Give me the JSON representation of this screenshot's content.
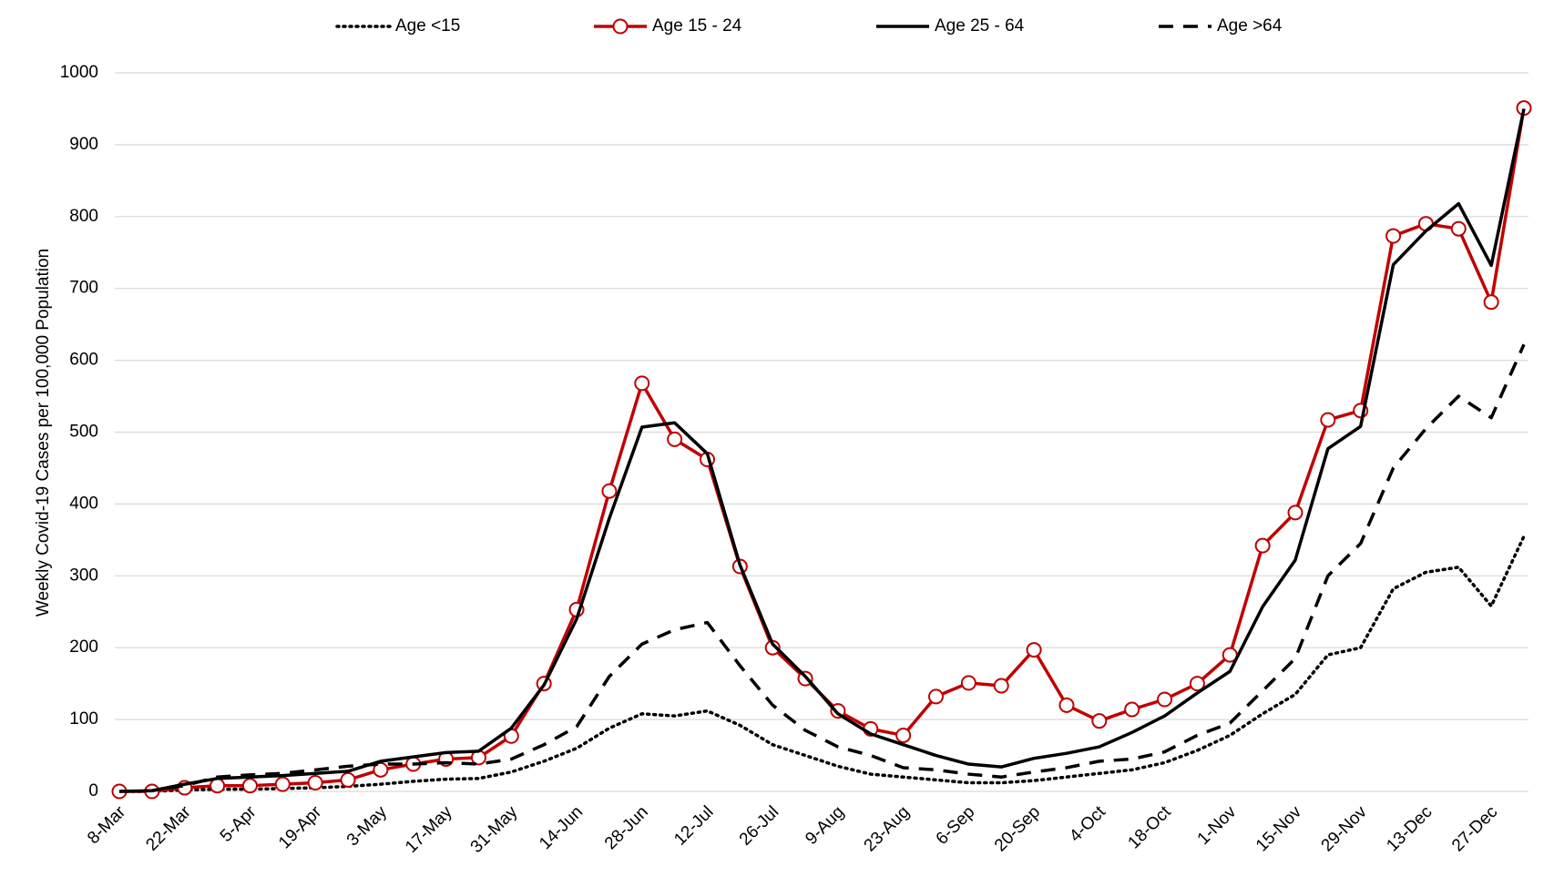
{
  "chart_data": {
    "type": "line",
    "y_label": "Weekly Covid-19 Cases per 100,000 Population",
    "categories": [
      "8-Mar",
      null,
      "22-Mar",
      null,
      "5-Apr",
      null,
      "19-Apr",
      null,
      "3-May",
      null,
      "17-May",
      null,
      "31-May",
      null,
      "14-Jun",
      null,
      "28-Jun",
      null,
      "12-Jul",
      null,
      "26-Jul",
      null,
      "9-Aug",
      null,
      "23-Aug",
      null,
      "6-Sep",
      null,
      "20-Sep",
      null,
      "4-Oct",
      null,
      "18-Oct",
      null,
      "1-Nov",
      null,
      "15-Nov",
      null,
      "29-Nov",
      null,
      "13-Dec",
      null,
      "27-Dec",
      null
    ],
    "series": [
      {
        "name": "Age <15",
        "color": "#000000",
        "style": "dotted",
        "values": [
          0,
          0,
          2,
          3,
          3,
          4,
          5,
          7,
          10,
          14,
          17,
          18,
          27,
          42,
          60,
          88,
          108,
          105,
          112,
          92,
          65,
          50,
          35,
          24,
          20,
          16,
          12,
          12,
          15,
          20,
          25,
          30,
          40,
          57,
          78,
          108,
          135,
          190,
          200,
          282,
          305,
          312,
          258,
          355
        ]
      },
      {
        "name": "Age 15 - 24",
        "color": "#c00000",
        "style": "markers",
        "values": [
          0,
          0,
          5,
          8,
          8,
          10,
          12,
          16,
          30,
          38,
          45,
          47,
          77,
          150,
          253,
          418,
          568,
          490,
          462,
          313,
          200,
          157,
          112,
          87,
          78,
          132,
          151,
          147,
          197,
          120,
          98,
          114,
          128,
          150,
          190,
          342,
          388,
          517,
          530,
          773,
          790,
          783,
          681,
          951
        ]
      },
      {
        "name": "Age 25 - 64",
        "color": "#000000",
        "style": "solid",
        "values": [
          0,
          1,
          10,
          18,
          20,
          22,
          25,
          28,
          42,
          48,
          54,
          56,
          88,
          148,
          240,
          380,
          507,
          513,
          470,
          315,
          205,
          160,
          108,
          80,
          65,
          50,
          38,
          34,
          46,
          53,
          62,
          82,
          105,
          137,
          167,
          257,
          322,
          477,
          508,
          733,
          780,
          818,
          732,
          950
        ]
      },
      {
        "name": "Age >64",
        "color": "#000000",
        "style": "dashed",
        "values": [
          0,
          1,
          8,
          20,
          23,
          25,
          30,
          35,
          38,
          38,
          40,
          38,
          45,
          65,
          90,
          160,
          205,
          225,
          235,
          175,
          120,
          85,
          62,
          50,
          33,
          30,
          24,
          20,
          27,
          33,
          42,
          45,
          55,
          78,
          95,
          140,
          185,
          300,
          345,
          450,
          505,
          550,
          520,
          622
        ]
      }
    ],
    "ylim": [
      0,
      1000
    ],
    "yticks": [
      0,
      100,
      200,
      300,
      400,
      500,
      600,
      700,
      800,
      900,
      1000
    ],
    "grid": true,
    "legend": "top"
  }
}
